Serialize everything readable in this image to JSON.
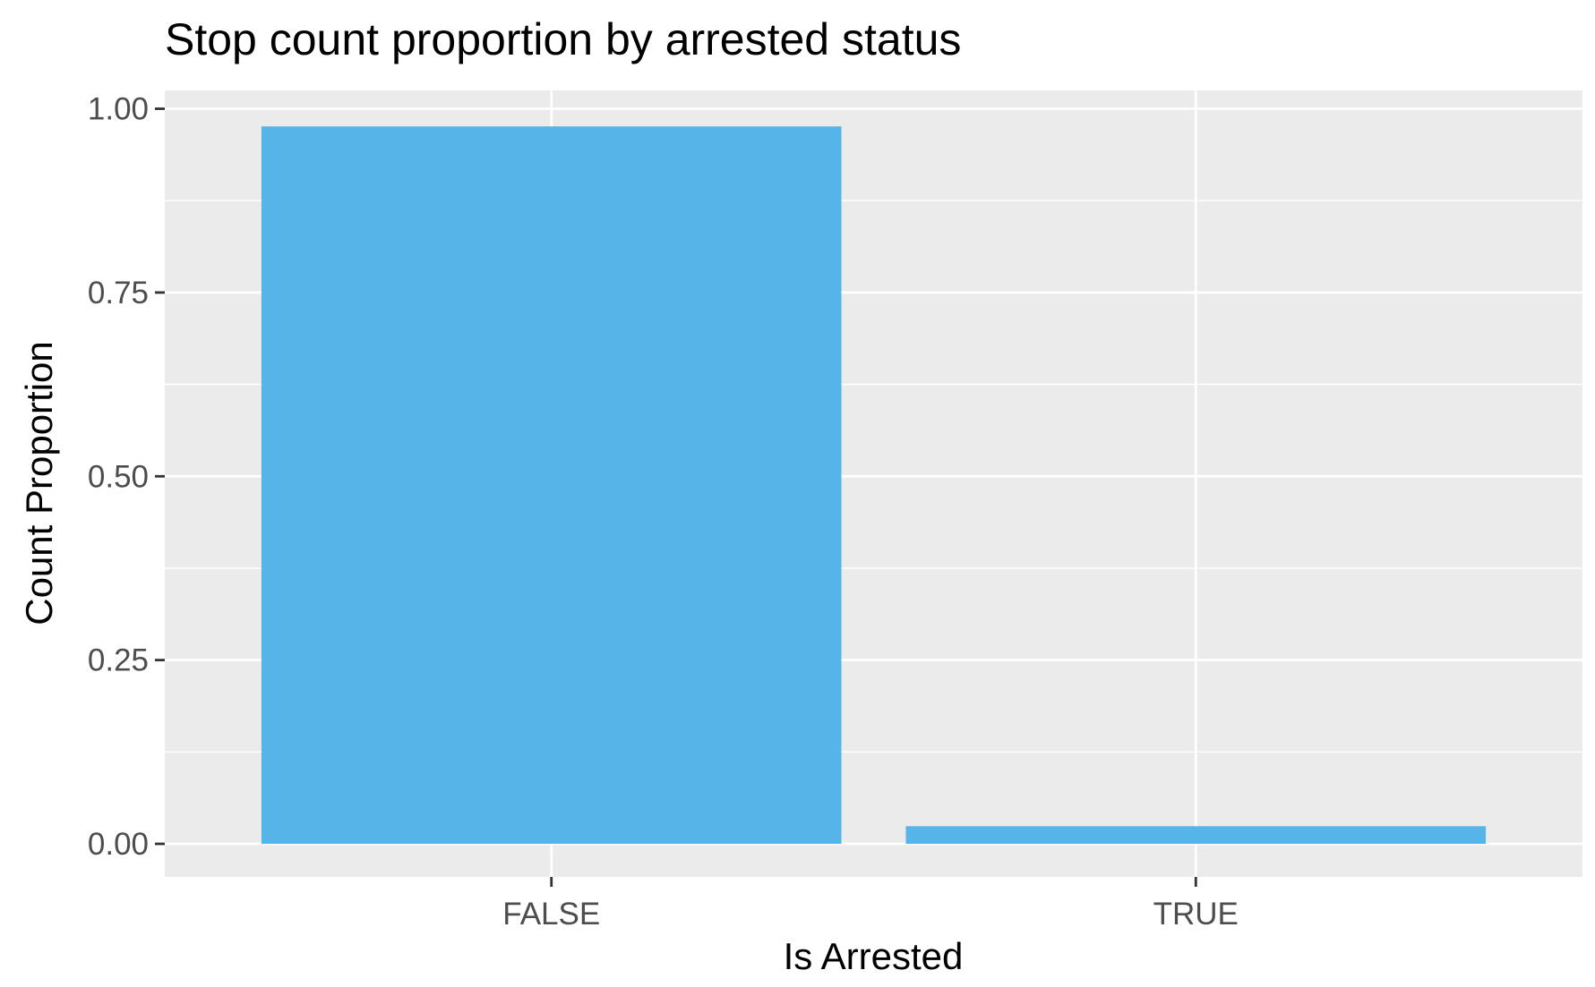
{
  "chart_data": {
    "type": "bar",
    "title": "Stop count proportion by arrested status",
    "xlabel": "Is Arrested",
    "ylabel": "Count Proportion",
    "categories": [
      "FALSE",
      "TRUE"
    ],
    "values": [
      0.976,
      0.024
    ],
    "ylim": [
      -0.045,
      1.025
    ],
    "yticks": [
      0,
      0.25,
      0.5,
      0.75,
      1
    ],
    "ytick_labels": [
      "0.00",
      "0.25",
      "0.50",
      "0.75",
      "1.00"
    ],
    "grid": true,
    "legend": "none",
    "colors": {
      "bar": "#56b4e9",
      "panel": "#ebebeb",
      "grid": "#ffffff",
      "tick_text": "#4d4d4d",
      "tick_mark": "#333333"
    }
  }
}
